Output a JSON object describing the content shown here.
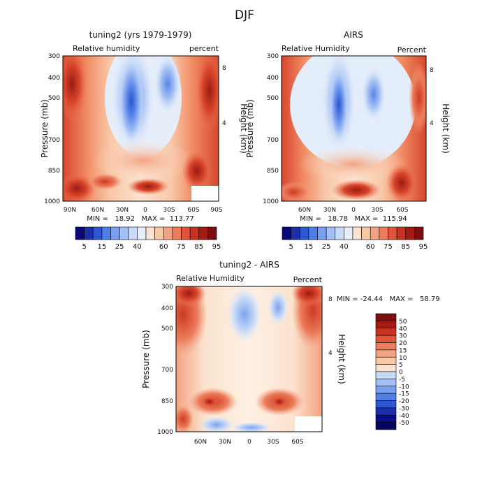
{
  "figure_title": "DJF",
  "chart_data": [
    {
      "type": "heatmap",
      "id": "top-left",
      "title": "tuning2 (yrs 1979-1979)",
      "subtitle_left": "Relative humidity",
      "subtitle_right": "percent",
      "ylabel": "Pressure (mb)",
      "ylabel_right": "Height (km)",
      "x_ticklabels": [
        "90N",
        "60N",
        "30N",
        "0",
        "30S",
        "60S",
        "90S"
      ],
      "y_ticklabels": [
        "300",
        "400",
        "500",
        "700",
        "850",
        "1000"
      ],
      "y_right_ticklabels": [
        "8",
        "4"
      ],
      "ylim": [
        1000,
        300
      ],
      "y_scale": "log-pressure",
      "stats": "MIN =   18.92   MAX =  113.77",
      "min": 18.92,
      "max": 113.77
    },
    {
      "type": "heatmap",
      "id": "top-right",
      "title": "AIRS",
      "subtitle_left": "Relative Humidity",
      "subtitle_right": "Percent",
      "ylabel": "Pressure (mb)",
      "ylabel_right": "Height (km)",
      "x_ticklabels": [
        "60N",
        "30N",
        "0",
        "30S",
        "60S"
      ],
      "y_ticklabels": [
        "300",
        "400",
        "500",
        "700",
        "850",
        "1000"
      ],
      "y_right_ticklabels": [
        "8",
        "4"
      ],
      "ylim": [
        1000,
        300
      ],
      "y_scale": "log-pressure",
      "stats": "MIN =   18.78   MAX =  115.94",
      "min": 18.78,
      "max": 115.94
    },
    {
      "type": "heatmap",
      "id": "bottom",
      "title": "tuning2 - AIRS",
      "subtitle_left": "Relative Humidity",
      "subtitle_right": "Percent",
      "ylabel": "Pressure (mb)",
      "ylabel_right": "Height (km)",
      "x_ticklabels": [
        "60N",
        "30N",
        "0",
        "30S",
        "60S"
      ],
      "y_ticklabels": [
        "300",
        "400",
        "500",
        "700",
        "850",
        "1000"
      ],
      "y_right_ticklabels": [
        "8",
        "4"
      ],
      "ylim": [
        1000,
        300
      ],
      "y_scale": "log-pressure",
      "stats": "MIN = -24.44   MAX =   58.79",
      "min": -24.44,
      "max": 58.79
    }
  ],
  "colorbar_abs": {
    "labels": [
      "5",
      "15",
      "25",
      "40",
      "60",
      "75",
      "85",
      "95"
    ],
    "colors": [
      "#08087a",
      "#1a2fa8",
      "#2f57d1",
      "#4f7fe6",
      "#789ff0",
      "#a3bff5",
      "#c8dbf7",
      "#e8eef8",
      "#fbe3cf",
      "#f8c7a6",
      "#f3a382",
      "#ec7c5b",
      "#e0553a",
      "#c9321f",
      "#a11c15",
      "#7b0f0f"
    ]
  },
  "colorbar_diff": {
    "labels": [
      "50",
      "40",
      "30",
      "20",
      "15",
      "10",
      "5",
      "0",
      "-5",
      "-10",
      "-15",
      "-20",
      "-30",
      "-40",
      "-50"
    ],
    "colors": [
      "#7b0f0f",
      "#a11c15",
      "#c9321f",
      "#e0553a",
      "#ec7c5b",
      "#f3a382",
      "#f8c7a6",
      "#fbe3cf",
      "#c8dbf7",
      "#a3bff5",
      "#789ff0",
      "#4f7fe6",
      "#2f57d1",
      "#1a2fa8",
      "#0a0d8a",
      "#050560"
    ]
  }
}
